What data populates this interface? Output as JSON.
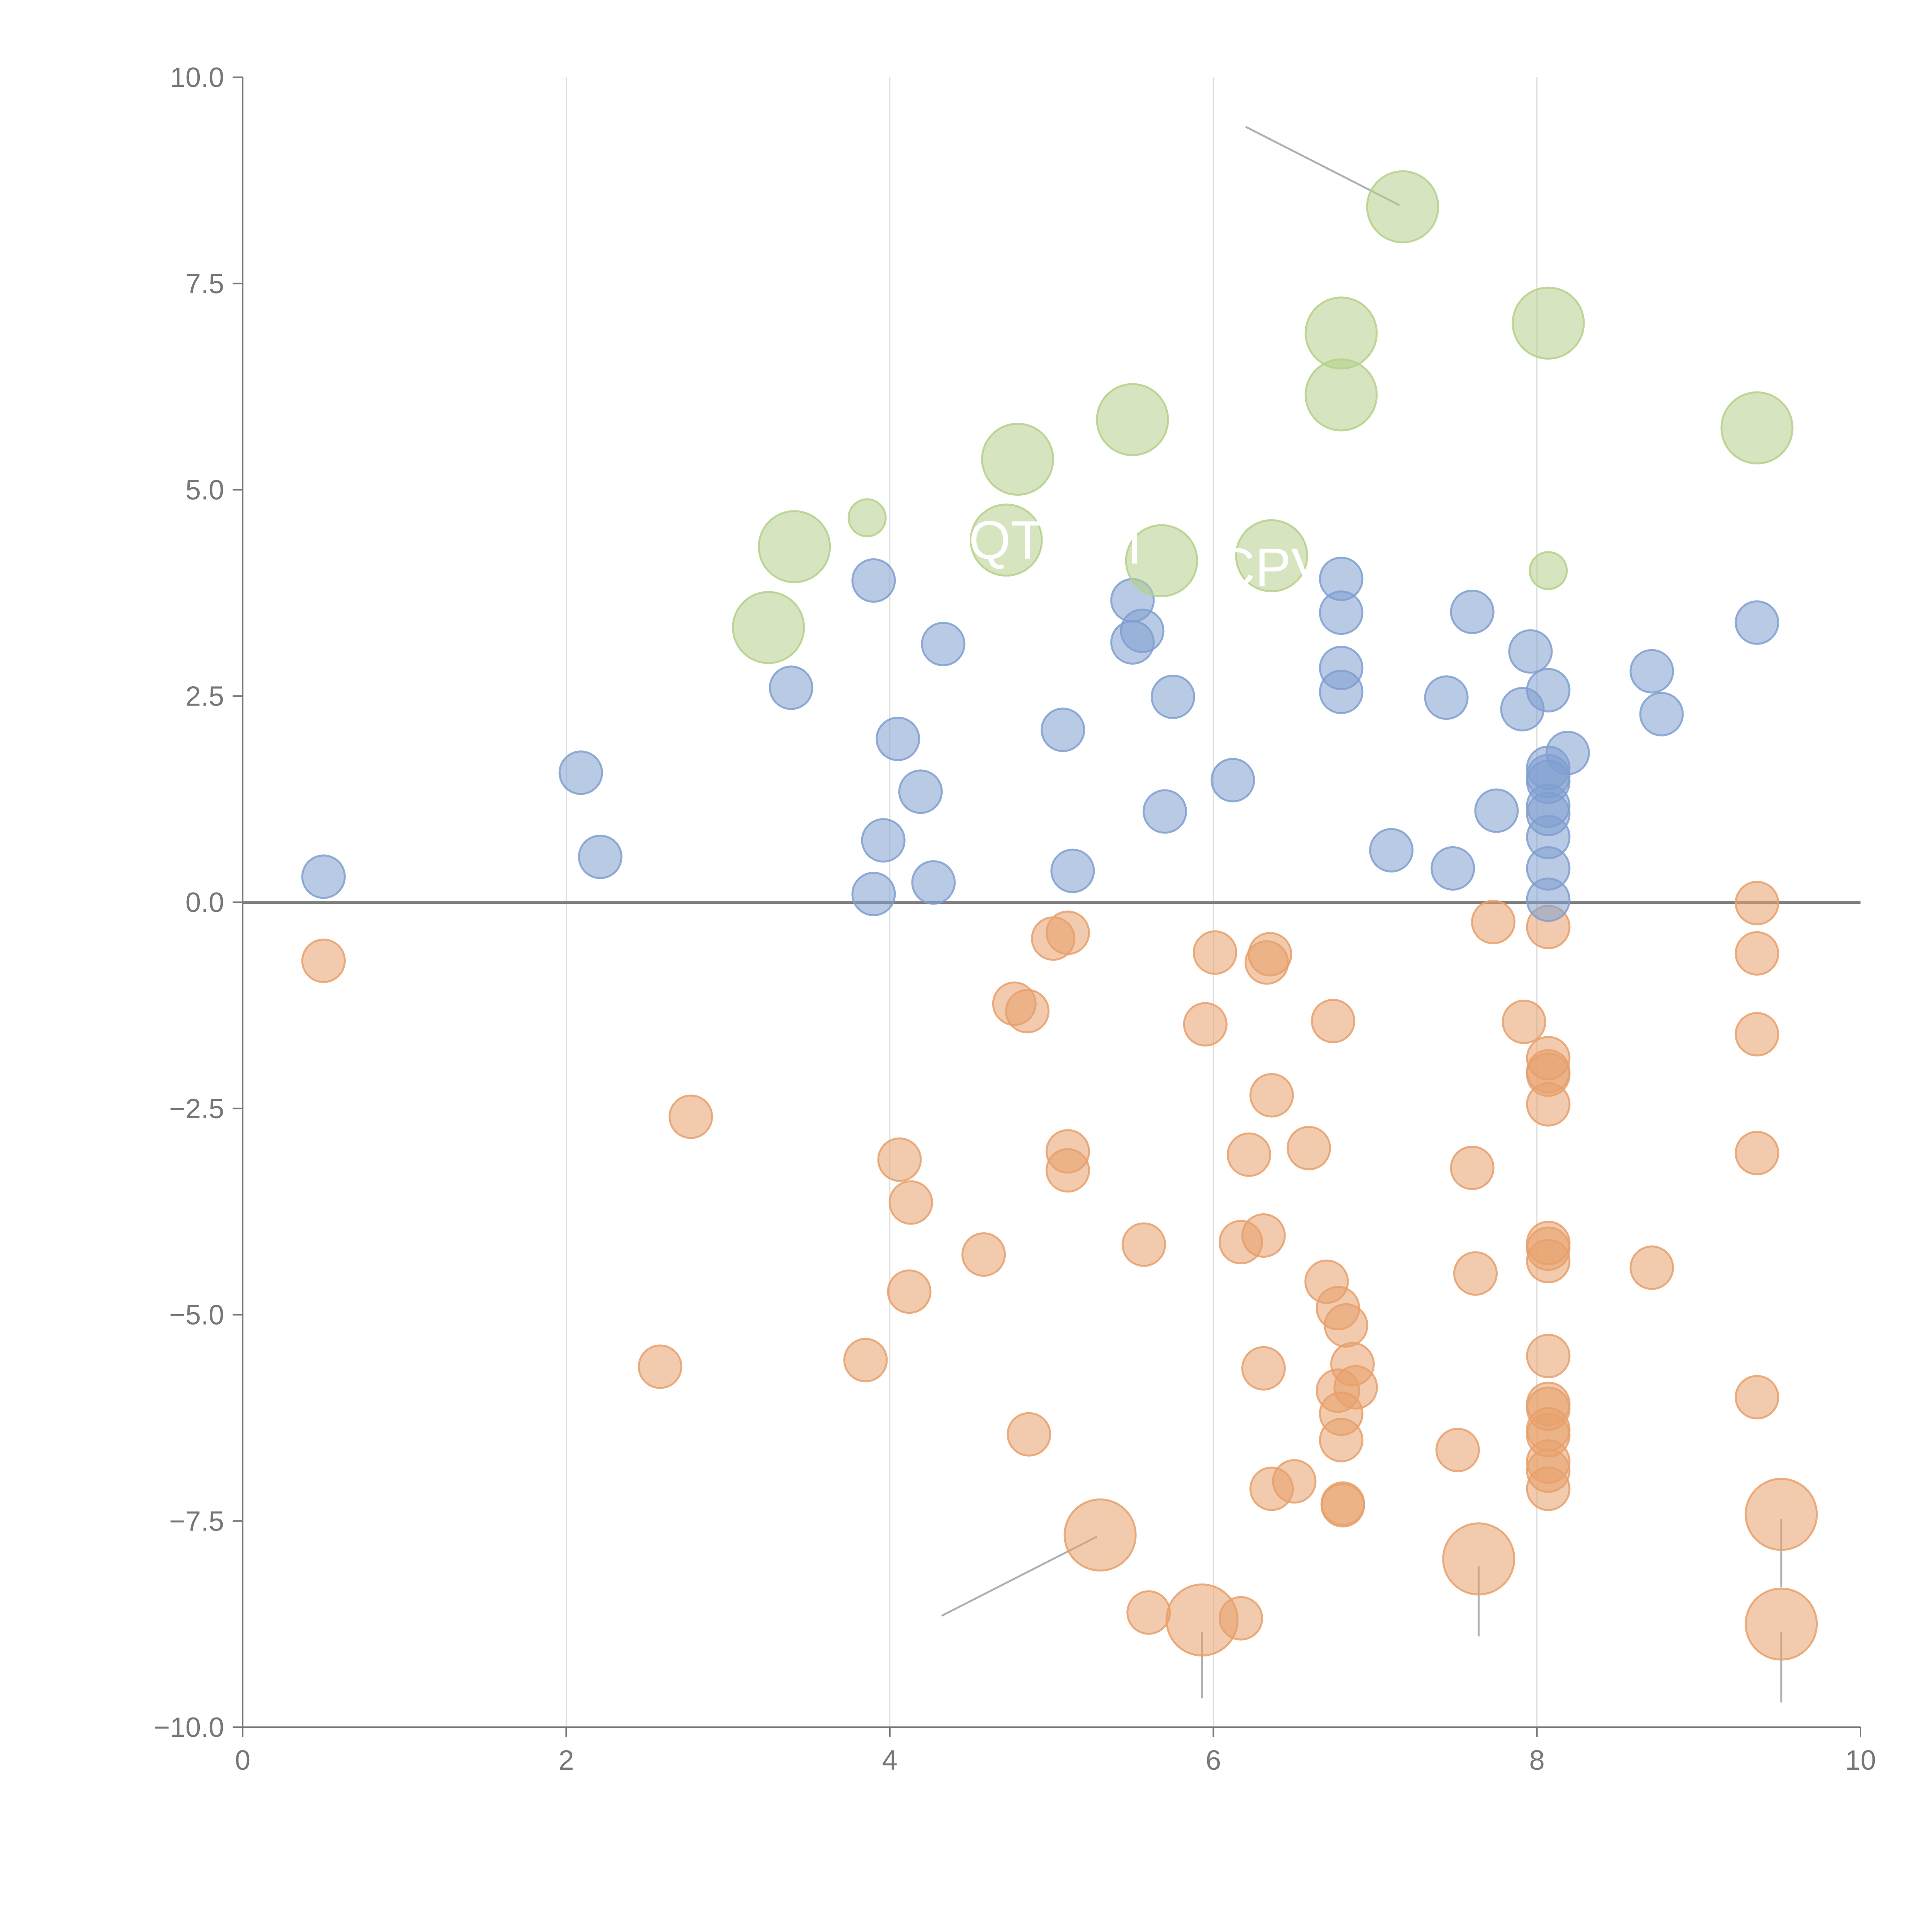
{
  "chart_data": {
    "type": "scatter",
    "title": "",
    "xlabel": "",
    "ylabel": "",
    "xlim": [
      0,
      10
    ],
    "ylim": [
      -10,
      10
    ],
    "x_ticks": [
      0,
      2,
      4,
      6,
      8,
      10
    ],
    "x_tick_labels": [
      "0",
      "2",
      "4",
      "6",
      "8",
      "10"
    ],
    "y_ticks": [
      10,
      7.5,
      5,
      2.5,
      0,
      -2.5,
      -5,
      -7.5,
      -10
    ],
    "y_tick_labels": [
      "10.0",
      "7.5",
      "5.0",
      "2.5",
      "0.0",
      "−2.5",
      "−5.0",
      "−7.5",
      "−10.0"
    ],
    "grid": "vertical",
    "reference_line_y": 0,
    "colors": {
      "blue": "#7f9fd0",
      "orange": "#e8a06b",
      "green": "#b5d08a",
      "axis": "#777777",
      "grid": "#dddddd",
      "zero_line": "#808080",
      "leader": "#b0b0b0"
    },
    "series": [
      {
        "name": "green",
        "color": "#b5d08a",
        "points": [
          {
            "x": 7.17,
            "y": 8.43,
            "r": "large"
          },
          {
            "x": 6.79,
            "y": 6.9,
            "r": "large"
          },
          {
            "x": 8.07,
            "y": 7.02,
            "r": "large"
          },
          {
            "x": 6.79,
            "y": 6.15,
            "r": "large"
          },
          {
            "x": 5.5,
            "y": 5.85,
            "r": "large"
          },
          {
            "x": 4.79,
            "y": 5.37,
            "r": "large"
          },
          {
            "x": 9.36,
            "y": 5.75,
            "r": "large"
          },
          {
            "x": 3.86,
            "y": 4.66,
            "r": "small"
          },
          {
            "x": 3.41,
            "y": 4.31,
            "r": "large"
          },
          {
            "x": 4.72,
            "y": 4.39,
            "r": "large"
          },
          {
            "x": 5.68,
            "y": 4.14,
            "r": "large"
          },
          {
            "x": 6.36,
            "y": 4.2,
            "r": "large"
          },
          {
            "x": 8.07,
            "y": 4.02,
            "r": "small"
          },
          {
            "x": 3.25,
            "y": 3.33,
            "r": "large"
          }
        ]
      },
      {
        "name": "blue",
        "color": "#7f9fd0",
        "points": [
          {
            "x": 0.5,
            "y": 0.31
          },
          {
            "x": 2.09,
            "y": 1.57
          },
          {
            "x": 2.21,
            "y": 0.55
          },
          {
            "x": 3.39,
            "y": 2.6
          },
          {
            "x": 3.9,
            "y": 3.9
          },
          {
            "x": 3.9,
            "y": 0.1
          },
          {
            "x": 3.96,
            "y": 0.75
          },
          {
            "x": 4.05,
            "y": 1.98
          },
          {
            "x": 4.19,
            "y": 1.34
          },
          {
            "x": 4.27,
            "y": 0.24
          },
          {
            "x": 4.33,
            "y": 3.13
          },
          {
            "x": 5.07,
            "y": 2.09
          },
          {
            "x": 5.13,
            "y": 0.38
          },
          {
            "x": 5.5,
            "y": 3.66
          },
          {
            "x": 5.5,
            "y": 3.15
          },
          {
            "x": 5.56,
            "y": 3.29
          },
          {
            "x": 5.7,
            "y": 1.1
          },
          {
            "x": 5.75,
            "y": 2.49
          },
          {
            "x": 6.12,
            "y": 1.48
          },
          {
            "x": 6.79,
            "y": 3.92
          },
          {
            "x": 6.79,
            "y": 3.51
          },
          {
            "x": 6.79,
            "y": 2.84
          },
          {
            "x": 6.79,
            "y": 2.55
          },
          {
            "x": 7.1,
            "y": 0.63
          },
          {
            "x": 7.44,
            "y": 2.48
          },
          {
            "x": 7.48,
            "y": 0.41
          },
          {
            "x": 7.6,
            "y": 3.52
          },
          {
            "x": 7.75,
            "y": 1.11
          },
          {
            "x": 7.91,
            "y": 2.34
          },
          {
            "x": 7.96,
            "y": 3.04
          },
          {
            "x": 8.07,
            "y": 2.57
          },
          {
            "x": 8.07,
            "y": 1.63
          },
          {
            "x": 8.07,
            "y": 1.53
          },
          {
            "x": 8.07,
            "y": 1.46
          },
          {
            "x": 8.07,
            "y": 1.17
          },
          {
            "x": 8.07,
            "y": 1.07
          },
          {
            "x": 8.07,
            "y": 0.79
          },
          {
            "x": 8.07,
            "y": 0.41
          },
          {
            "x": 8.07,
            "y": 0.03
          },
          {
            "x": 8.19,
            "y": 1.81
          },
          {
            "x": 8.71,
            "y": 2.8
          },
          {
            "x": 8.77,
            "y": 2.28
          },
          {
            "x": 9.36,
            "y": 3.39
          }
        ]
      },
      {
        "name": "orange",
        "color": "#e8a06b",
        "points": [
          {
            "x": 0.5,
            "y": -0.71
          },
          {
            "x": 2.77,
            "y": -2.6
          },
          {
            "x": 2.58,
            "y": -5.63
          },
          {
            "x": 3.85,
            "y": -5.55
          },
          {
            "x": 4.06,
            "y": -3.12
          },
          {
            "x": 4.13,
            "y": -3.64
          },
          {
            "x": 4.12,
            "y": -4.72
          },
          {
            "x": 4.58,
            "y": -4.27
          },
          {
            "x": 4.77,
            "y": -1.23
          },
          {
            "x": 4.85,
            "y": -1.32
          },
          {
            "x": 4.86,
            "y": -6.45
          },
          {
            "x": 5.01,
            "y": -0.44
          },
          {
            "x": 5.1,
            "y": -0.37
          },
          {
            "x": 5.1,
            "y": -3.02
          },
          {
            "x": 5.1,
            "y": -3.25
          },
          {
            "x": 5.57,
            "y": -4.15
          },
          {
            "x": 5.6,
            "y": -8.61
          },
          {
            "x": 5.95,
            "y": -1.48
          },
          {
            "x": 6.01,
            "y": -0.61
          },
          {
            "x": 6.17,
            "y": -8.68
          },
          {
            "x": 6.17,
            "y": -4.12
          },
          {
            "x": 6.22,
            "y": -3.06
          },
          {
            "x": 6.31,
            "y": -4.04
          },
          {
            "x": 6.31,
            "y": -5.65
          },
          {
            "x": 6.33,
            "y": -0.73
          },
          {
            "x": 6.35,
            "y": -0.63
          },
          {
            "x": 6.36,
            "y": -2.34
          },
          {
            "x": 6.36,
            "y": -7.11
          },
          {
            "x": 6.5,
            "y": -7.02
          },
          {
            "x": 6.59,
            "y": -2.98
          },
          {
            "x": 6.7,
            "y": -4.6
          },
          {
            "x": 6.74,
            "y": -1.44
          },
          {
            "x": 6.77,
            "y": -4.92
          },
          {
            "x": 6.77,
            "y": -5.92
          },
          {
            "x": 6.79,
            "y": -6.2
          },
          {
            "x": 6.79,
            "y": -6.52
          },
          {
            "x": 6.8,
            "y": -7.29
          },
          {
            "x": 6.8,
            "y": -7.31
          },
          {
            "x": 6.82,
            "y": -5.13
          },
          {
            "x": 6.86,
            "y": -5.6
          },
          {
            "x": 6.88,
            "y": -5.88
          },
          {
            "x": 7.51,
            "y": -6.64
          },
          {
            "x": 7.6,
            "y": -3.22
          },
          {
            "x": 7.62,
            "y": -4.5
          },
          {
            "x": 7.73,
            "y": -0.24
          },
          {
            "x": 7.92,
            "y": -1.45
          },
          {
            "x": 8.07,
            "y": -0.3
          },
          {
            "x": 8.07,
            "y": -1.89
          },
          {
            "x": 8.07,
            "y": -2.05
          },
          {
            "x": 8.07,
            "y": -2.09
          },
          {
            "x": 8.07,
            "y": -2.45
          },
          {
            "x": 8.07,
            "y": -4.13
          },
          {
            "x": 8.07,
            "y": -4.2
          },
          {
            "x": 8.07,
            "y": -4.35
          },
          {
            "x": 8.07,
            "y": -5.5
          },
          {
            "x": 8.07,
            "y": -6.08
          },
          {
            "x": 8.07,
            "y": -6.14
          },
          {
            "x": 8.07,
            "y": -6.39
          },
          {
            "x": 8.07,
            "y": -6.46
          },
          {
            "x": 8.07,
            "y": -6.78
          },
          {
            "x": 8.07,
            "y": -6.89
          },
          {
            "x": 8.07,
            "y": -7.11
          },
          {
            "x": 8.71,
            "y": -4.43
          },
          {
            "x": 9.36,
            "y": -0.01
          },
          {
            "x": 9.36,
            "y": -0.62
          },
          {
            "x": 9.36,
            "y": -1.6
          },
          {
            "x": 9.36,
            "y": -3.04
          },
          {
            "x": 9.36,
            "y": -6.0
          },
          {
            "x": 5.3,
            "y": -7.67,
            "r": "large"
          },
          {
            "x": 5.93,
            "y": -8.7,
            "r": "large"
          },
          {
            "x": 7.64,
            "y": -7.96,
            "r": "large"
          },
          {
            "x": 9.51,
            "y": -7.42,
            "r": "large"
          },
          {
            "x": 9.51,
            "y": -8.75,
            "r": "large"
          }
        ]
      }
    ],
    "annotations": [
      {
        "text": "QT",
        "x": 4.72,
        "y": 4.39
      },
      {
        "text": "VI",
        "x": 5.4,
        "y": 4.33
      },
      {
        "text": "CPV",
        "x": 6.36,
        "y": 4.06
      }
    ],
    "leaders": [
      {
        "from": [
          6.2,
          9.4
        ],
        "to": [
          7.15,
          8.45
        ]
      },
      {
        "from": [
          4.32,
          -8.65
        ],
        "to": [
          5.28,
          -7.69
        ]
      },
      {
        "from": [
          5.93,
          -8.85
        ],
        "to": [
          5.93,
          -9.65
        ]
      },
      {
        "from": [
          7.64,
          -8.05
        ],
        "to": [
          7.64,
          -8.9
        ]
      },
      {
        "from": [
          9.51,
          -7.48
        ],
        "to": [
          9.51,
          -8.3
        ]
      },
      {
        "from": [
          9.51,
          -8.85
        ],
        "to": [
          9.51,
          -9.7
        ]
      }
    ]
  }
}
